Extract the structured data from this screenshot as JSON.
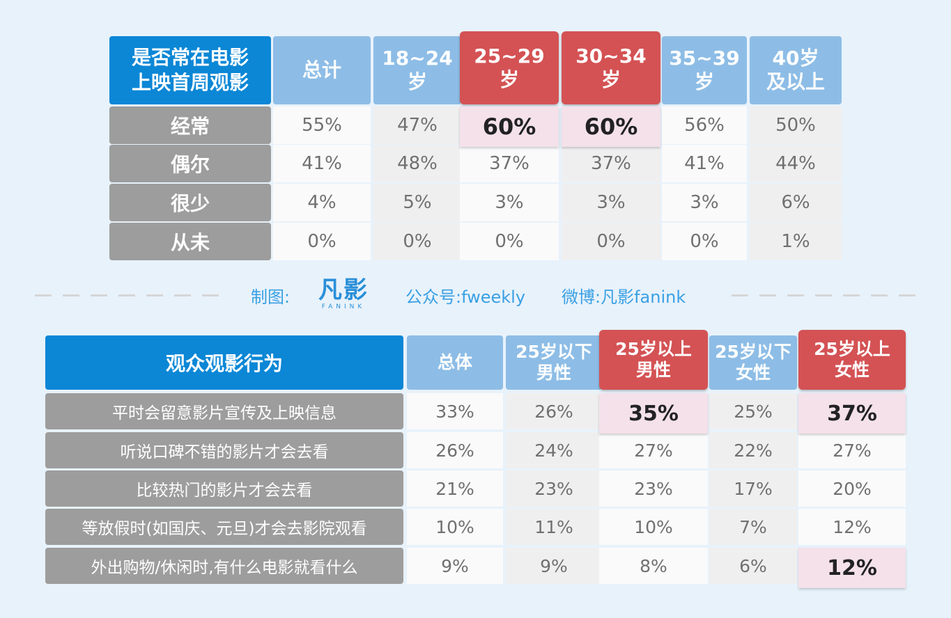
{
  "table1": {
    "corner": "是否常在电影\n上映首周观影",
    "headers": [
      "总计",
      "18~24\n岁",
      "25~29\n岁",
      "30~34\n岁",
      "35~39\n岁",
      "40岁\n及以上"
    ],
    "highlight_cols": [
      2,
      3
    ],
    "rows": [
      {
        "label": "经常",
        "values": [
          "55%",
          "47%",
          "60%",
          "60%",
          "56%",
          "50%"
        ],
        "highlight": [
          2,
          3
        ]
      },
      {
        "label": "偶尔",
        "values": [
          "41%",
          "48%",
          "37%",
          "37%",
          "41%",
          "44%"
        ],
        "highlight": []
      },
      {
        "label": "很少",
        "values": [
          "4%",
          "5%",
          "3%",
          "3%",
          "3%",
          "6%"
        ],
        "highlight": []
      },
      {
        "label": "从未",
        "values": [
          "0%",
          "0%",
          "0%",
          "0%",
          "0%",
          "1%"
        ],
        "highlight": []
      }
    ]
  },
  "credit": {
    "made_by": "制图:",
    "logo_text": "凡影",
    "logo_sub": "FANINK",
    "wechat": "公众号:fweekly",
    "weibo": "微博:凡影fanink"
  },
  "table2": {
    "corner": "观众观影行为",
    "headers": [
      "总体",
      "25岁以下\n男性",
      "25岁以上\n男性",
      "25岁以下\n女性",
      "25岁以上\n女性"
    ],
    "highlight_cols": [
      2,
      4
    ],
    "rows": [
      {
        "label": "平时会留意影片宣传及上映信息",
        "values": [
          "33%",
          "26%",
          "35%",
          "25%",
          "37%"
        ],
        "highlight": [
          2,
          4
        ]
      },
      {
        "label": "听说口碑不错的影片才会去看",
        "values": [
          "26%",
          "24%",
          "27%",
          "22%",
          "27%"
        ],
        "highlight": []
      },
      {
        "label": "比较热门的影片才会去看",
        "values": [
          "21%",
          "23%",
          "23%",
          "17%",
          "20%"
        ],
        "highlight": []
      },
      {
        "label": "等放假时(如国庆、元旦)才会去影院观看",
        "values": [
          "10%",
          "11%",
          "10%",
          "7%",
          "12%"
        ],
        "highlight": []
      },
      {
        "label": "外出购物/休闲时,有什么电影就看什么",
        "values": [
          "9%",
          "9%",
          "8%",
          "6%",
          "12%"
        ],
        "highlight": [
          4
        ]
      }
    ]
  },
  "chart_data": [
    {
      "type": "table",
      "title": "是否常在电影上映首周观影",
      "categories": [
        "总计",
        "18~24岁",
        "25~29岁",
        "30~34岁",
        "35~39岁",
        "40岁及以上"
      ],
      "series": [
        {
          "name": "经常",
          "values": [
            55,
            47,
            60,
            60,
            56,
            50
          ]
        },
        {
          "name": "偶尔",
          "values": [
            41,
            48,
            37,
            37,
            41,
            44
          ]
        },
        {
          "name": "很少",
          "values": [
            4,
            5,
            3,
            3,
            3,
            6
          ]
        },
        {
          "name": "从未",
          "values": [
            0,
            0,
            0,
            0,
            0,
            1
          ]
        }
      ]
    },
    {
      "type": "table",
      "title": "观众观影行为",
      "categories": [
        "总体",
        "25岁以下男性",
        "25岁以上男性",
        "25岁以下女性",
        "25岁以上女性"
      ],
      "series": [
        {
          "name": "平时会留意影片宣传及上映信息",
          "values": [
            33,
            26,
            35,
            25,
            37
          ]
        },
        {
          "name": "听说口碑不错的影片才会去看",
          "values": [
            26,
            24,
            27,
            22,
            27
          ]
        },
        {
          "name": "比较热门的影片才会去看",
          "values": [
            21,
            23,
            23,
            17,
            20
          ]
        },
        {
          "name": "等放假时(如国庆、元旦)才会去影院观看",
          "values": [
            10,
            11,
            10,
            7,
            12
          ]
        },
        {
          "name": "外出购物/休闲时,有什么电影就看什么",
          "values": [
            9,
            9,
            8,
            6,
            12
          ]
        }
      ]
    }
  ]
}
